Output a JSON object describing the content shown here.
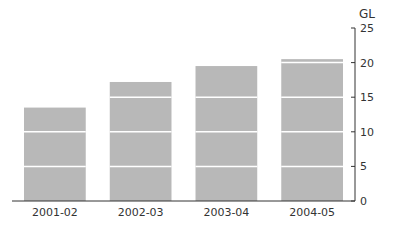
{
  "chart_data": {
    "type": "bar",
    "ylabel": "GL",
    "categories": [
      "2001-02",
      "2002-03",
      "2003-04",
      "2004-05"
    ],
    "values": [
      13.5,
      17.2,
      19.5,
      20.5
    ],
    "color": "#b8b8b8",
    "ylim": [
      0,
      25
    ],
    "yticks": [
      0,
      5,
      10,
      15,
      20,
      25
    ],
    "grid": false
  }
}
